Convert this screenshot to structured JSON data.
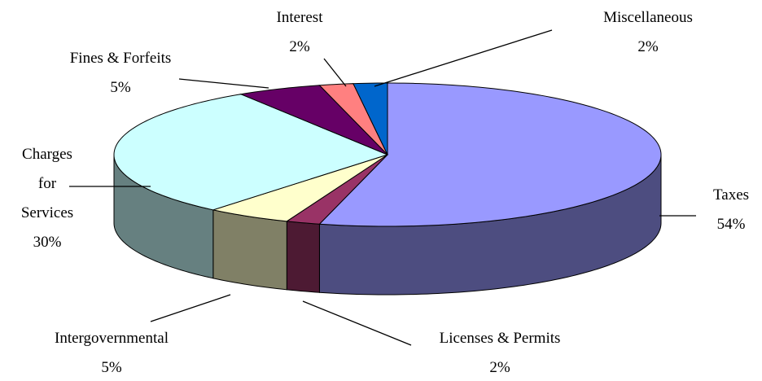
{
  "chart_data": {
    "type": "pie3d",
    "categories": [
      "Taxes",
      "Licenses & Permits",
      "Intergovernmental",
      "Charges for Services",
      "Fines & Forfeits",
      "Interest",
      "Miscellaneous"
    ],
    "values": [
      54,
      2,
      5,
      30,
      5,
      2,
      2
    ],
    "value_labels": [
      "54%",
      "2%",
      "5%",
      "30%",
      "5%",
      "2%",
      "2%"
    ],
    "colors": [
      "#9999ff",
      "#993366",
      "#ffffcc",
      "#ccffff",
      "#660066",
      "#ff8080",
      "#0066cc"
    ]
  }
}
